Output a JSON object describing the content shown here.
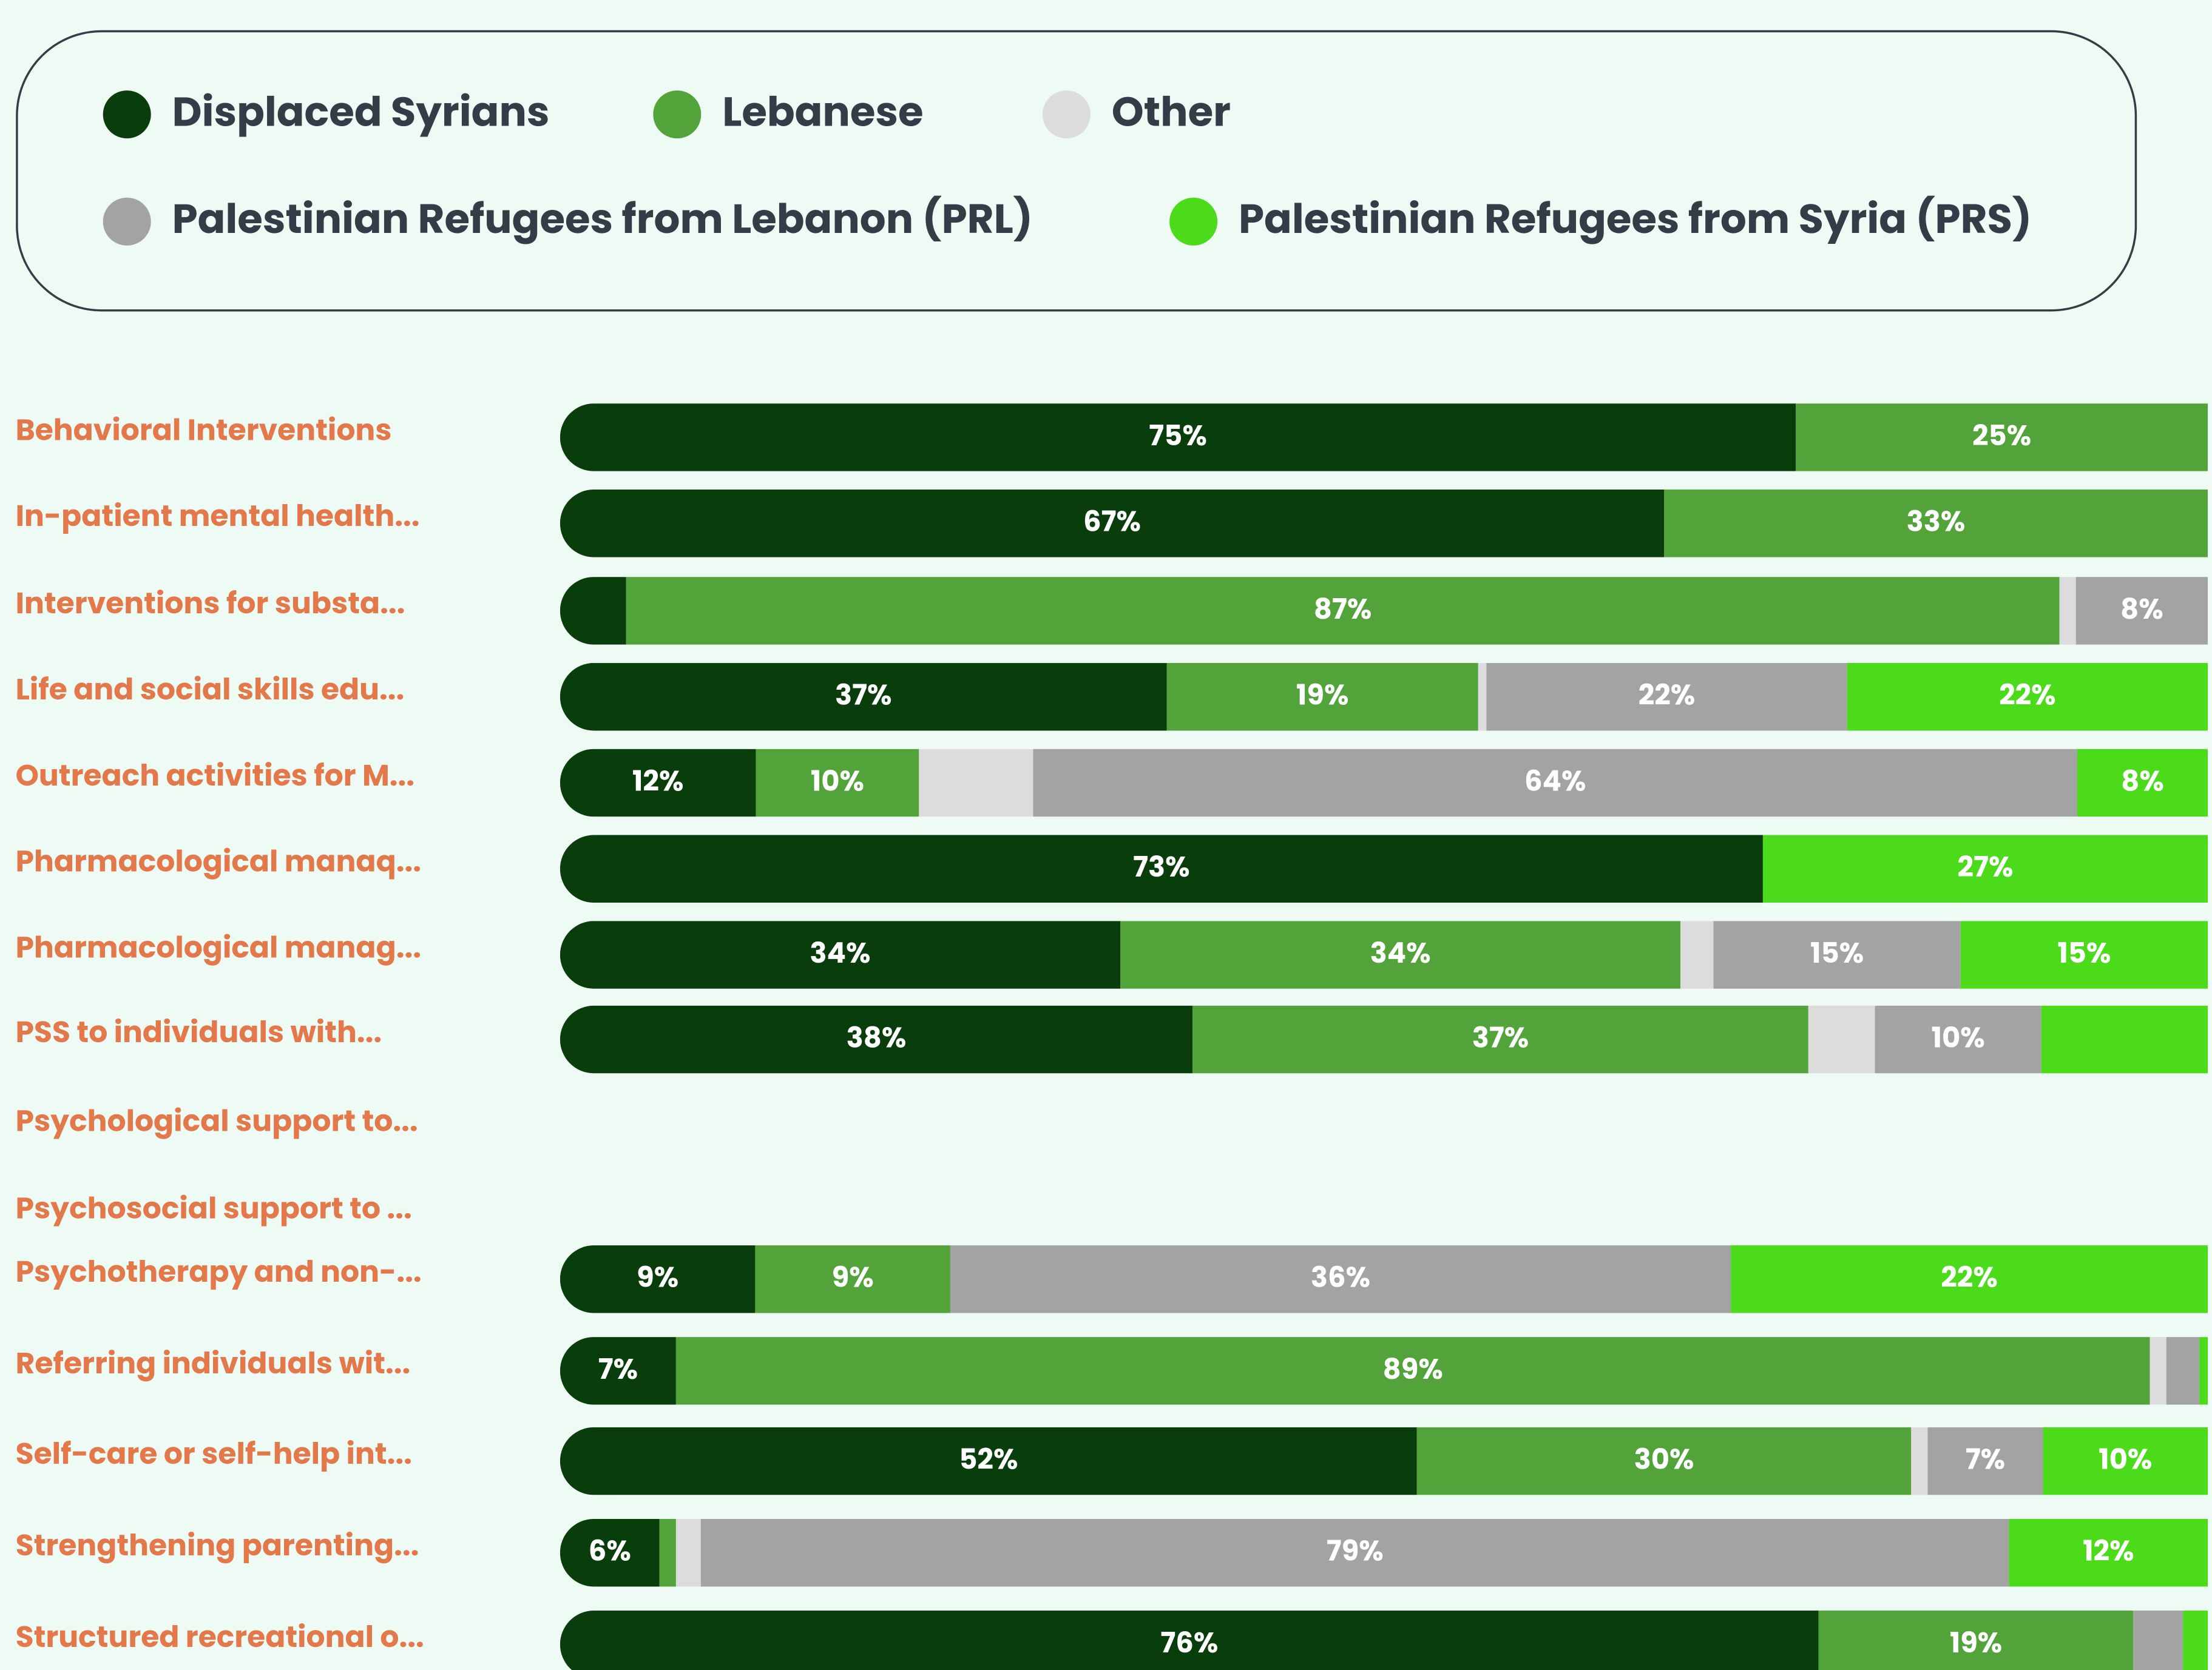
{
  "chart_data": {
    "type": "stacked_bar_horizontal",
    "categories": [
      "Behavioral Interventions",
      "In-patient mental health...",
      "Interventions for substa...",
      "Life and social skills edu...",
      "Outreach activities for M...",
      "Pharmacological manaq...",
      "Pharmacological manag...",
      "PSS to individuals with...",
      "Psychological support to...",
      "Psychosocial support to ...",
      "Psychotherapy and non-...",
      "Referring individuals wit...",
      "Self-care or self-help int...",
      "Strengthening parenting...",
      "Structured recreational o..."
    ],
    "series": [
      {
        "name": "Displaced Syrians",
        "color": "#0a3d0c",
        "values": [
          75,
          67,
          4,
          37,
          12,
          73,
          34,
          38,
          null,
          null,
          9,
          7,
          52,
          6,
          76
        ],
        "value_labels": [
          "75%",
          "67%",
          null,
          "37%",
          "12%",
          "73%",
          "34%",
          "38%",
          null,
          null,
          "9%",
          "7%",
          "52%",
          "6%",
          "76%"
        ]
      },
      {
        "name": "Lebanese",
        "color": "#52a33a",
        "values": [
          25,
          33,
          87,
          19,
          10,
          null,
          34,
          37,
          null,
          null,
          9,
          89,
          30,
          1,
          19
        ],
        "value_labels": [
          "25%",
          "33%",
          "87%",
          "19%",
          "10%",
          null,
          "34%",
          "37%",
          null,
          null,
          "9%",
          "89%",
          "30%",
          null,
          "19%"
        ]
      },
      {
        "name": "Other",
        "color": "#dcdcdc",
        "values": [
          null,
          null,
          1,
          0.5,
          7,
          null,
          2,
          4,
          null,
          null,
          null,
          1,
          1,
          1.5,
          null
        ],
        "value_labels": [
          null,
          null,
          null,
          null,
          null,
          null,
          null,
          null,
          null,
          null,
          null,
          null,
          null,
          null,
          null
        ]
      },
      {
        "name": "Palestinian Refugees from Lebanon (PRL)",
        "color": "#a3a3a3",
        "values": [
          null,
          null,
          8,
          22,
          64,
          null,
          15,
          10,
          null,
          null,
          36,
          2,
          7,
          79,
          3
        ],
        "value_labels": [
          null,
          null,
          "8%",
          "22%",
          "64%",
          null,
          "15%",
          "10%",
          null,
          null,
          "36%",
          null,
          "7%",
          "79%",
          null
        ]
      },
      {
        "name": "Palestinian Refugees from Syria (PRS)",
        "color": "#4cdb1a",
        "values": [
          null,
          null,
          null,
          22,
          8,
          27,
          15,
          10,
          null,
          null,
          22,
          0.5,
          10,
          12,
          1.5
        ],
        "value_labels": [
          null,
          null,
          null,
          "22%",
          "8%",
          "27%",
          "15%",
          null,
          null,
          null,
          "22%",
          null,
          "10%",
          "12%",
          null
        ]
      }
    ]
  }
}
